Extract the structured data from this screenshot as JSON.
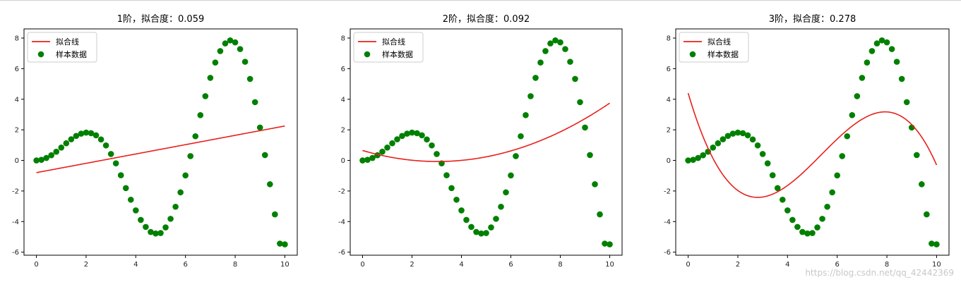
{
  "watermark": "https://blog.csdn.net/qq_42442369",
  "colors": {
    "fit": "#e8201c",
    "sample": "#008000"
  },
  "chart_data": [
    {
      "type": "line+scatter",
      "title": "1阶，拟合度：0.059",
      "xlim": [
        -0.5,
        10.5
      ],
      "ylim": [
        -6.2,
        8.6
      ],
      "xticks": [
        0,
        2,
        4,
        6,
        8,
        10
      ],
      "yticks": [
        -6,
        -4,
        -2,
        0,
        2,
        4,
        6,
        8
      ],
      "legend": {
        "position": "upper-left",
        "entries": [
          "拟合线",
          "样本数据"
        ]
      },
      "grid": false,
      "fit_coeffs": [
        -0.8,
        0.305
      ]
    },
    {
      "type": "line+scatter",
      "title": "2阶，拟合度：0.092",
      "xlim": [
        -0.5,
        10.5
      ],
      "ylim": [
        -6.2,
        8.6
      ],
      "xticks": [
        0,
        2,
        4,
        6,
        8,
        10
      ],
      "yticks": [
        -6,
        -4,
        -2,
        0,
        2,
        4,
        6,
        8
      ],
      "legend": {
        "position": "upper-left",
        "entries": [
          "拟合线",
          "样本数据"
        ]
      },
      "grid": false,
      "fit_coeffs": [
        0.65,
        -0.4764,
        0.0786
      ]
    },
    {
      "type": "line+scatter",
      "title": "3阶，拟合度：0.278",
      "xlim": [
        -0.5,
        10.5
      ],
      "ylim": [
        -6.2,
        8.6
      ],
      "xticks": [
        0,
        2,
        4,
        6,
        8,
        10
      ],
      "yticks": [
        -6,
        -4,
        -2,
        0,
        2,
        4,
        6,
        8
      ],
      "legend": {
        "position": "upper-left",
        "entries": [
          "拟合线",
          "样本数据"
        ]
      },
      "grid": false,
      "fit_coeffs": [
        4.4,
        -5.52,
        1.334,
        -0.0829
      ]
    }
  ],
  "sample_data": {
    "x": [
      0,
      0.2,
      0.4,
      0.6,
      0.8,
      1.0,
      1.2,
      1.4,
      1.6,
      1.8,
      2.0,
      2.2,
      2.4,
      2.6,
      2.8,
      3.0,
      3.2,
      3.4,
      3.6,
      3.8,
      4.0,
      4.2,
      4.4,
      4.6,
      4.8,
      5.0,
      5.2,
      5.4,
      5.6,
      5.8,
      6.0,
      6.2,
      6.4,
      6.6,
      6.8,
      7.0,
      7.2,
      7.4,
      7.6,
      7.8,
      8.0,
      8.2,
      8.4,
      8.6,
      8.8,
      9.0,
      9.2,
      9.4,
      9.6,
      9.8,
      10.0
    ],
    "y": [
      0.0,
      0.04,
      0.16,
      0.34,
      0.57,
      0.84,
      1.12,
      1.38,
      1.6,
      1.75,
      1.82,
      1.78,
      1.64,
      1.37,
      0.98,
      0.42,
      -0.19,
      -0.97,
      -1.81,
      -2.57,
      -3.27,
      -3.89,
      -4.35,
      -4.68,
      -4.78,
      -4.75,
      -4.38,
      -3.82,
      -3.03,
      -2.09,
      -0.98,
      0.28,
      1.58,
      2.96,
      4.2,
      5.4,
      6.4,
      7.15,
      7.65,
      7.85,
      7.72,
      7.28,
      6.45,
      5.33,
      3.81,
      2.15,
      0.35,
      -1.56,
      -3.53,
      -5.44,
      -5.49
    ]
  }
}
